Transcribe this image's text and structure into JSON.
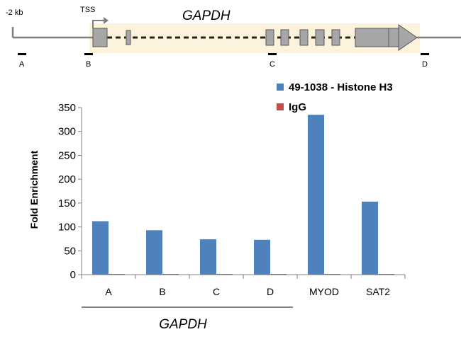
{
  "gene_map": {
    "gene_name": "GAPDH",
    "upstream_label": "-2 kb",
    "tss_label": "TSS",
    "primer_labels": [
      "A",
      "B",
      "C",
      "D"
    ]
  },
  "chart_data": {
    "type": "bar",
    "title": "",
    "ylabel": "Fold Enrichment",
    "xlabel": "",
    "categories": [
      "A",
      "B",
      "C",
      "D",
      "MYOD",
      "SAT2"
    ],
    "group_label": "GAPDH",
    "ylim": [
      0,
      350
    ],
    "yticks": [
      0,
      50,
      100,
      150,
      200,
      250,
      300,
      350
    ],
    "grid": false,
    "legend_position": "top-right",
    "series": [
      {
        "name": "49-1038 - Histone H3",
        "color": "#4f81bd",
        "values": [
          112,
          93,
          74,
          73,
          335,
          153
        ]
      },
      {
        "name": "IgG",
        "color": "#c0504d",
        "values": [
          1,
          1,
          1,
          1,
          1,
          1
        ]
      }
    ]
  }
}
